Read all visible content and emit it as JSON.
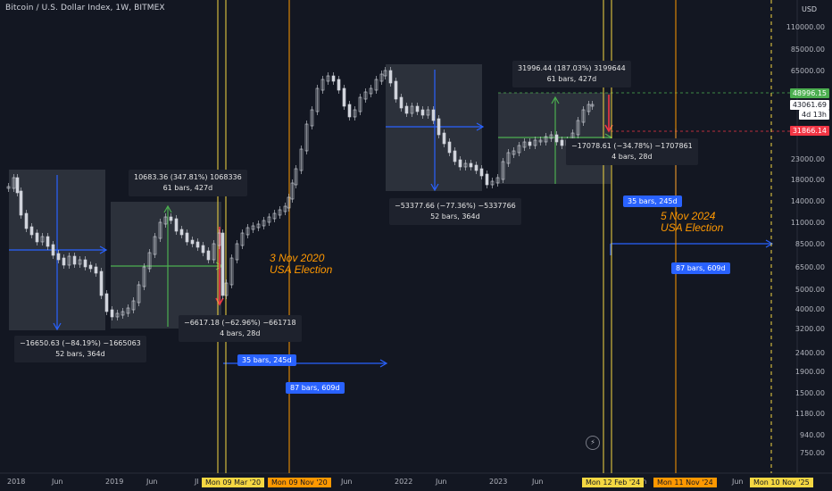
{
  "header": {
    "title": "Bitcoin / U.S. Dollar Index, 1W, BITMEX",
    "currency": "USD"
  },
  "price_axis": {
    "labels": [
      "110000.00",
      "85000.00",
      "65000.00",
      "48996.15",
      "43061.69",
      "4d 13h",
      "31866.14",
      "23000.00",
      "18000.00",
      "14000.00",
      "11000.00",
      "8500.00",
      "6500.00",
      "5000.00",
      "4000.00",
      "3200.00",
      "2400.00",
      "1900.00",
      "1500.00",
      "1180.00",
      "940.00",
      "750.00"
    ],
    "tags": {
      "high": "48996.15",
      "current": "43061.69",
      "countdown": "4d 13h",
      "low": "31866.14"
    }
  },
  "time_axis": {
    "labels": [
      "2018",
      "Jun",
      "2019",
      "Jun",
      "Jun",
      "2022",
      "Jun",
      "2023",
      "Jun",
      "Jun",
      "Jun"
    ],
    "tags": [
      "Mon 09 Mar '20",
      "Mon 09 Nov '20",
      "Mon 12 Feb '24",
      "Mon 11 Nov '24",
      "Mon 10 Nov '25"
    ],
    "partial": [
      "Jl",
      "rn",
      "4",
      "ldn"
    ]
  },
  "measurements": [
    {
      "line1": "−16650.63 (−84.19%) −1665063",
      "line2": "52 bars, 364d"
    },
    {
      "line1": "10683.36 (347.81%) 1068336",
      "line2": "61 bars, 427d"
    },
    {
      "line1": "−6617.18 (−62.96%) −661718",
      "line2": "4 bars, 28d"
    },
    {
      "line1": "−53377.66 (−77.36%) −5337766",
      "line2": "52 bars, 364d"
    },
    {
      "line1": "31996.44 (187.03%) 3199644",
      "line2": "61 bars, 427d"
    },
    {
      "line1": "−17078.61 (−34.78%) −1707861",
      "line2": "4 bars, 28d"
    }
  ],
  "bar_tags": {
    "a": "35 bars, 245d",
    "b": "87 bars, 609d",
    "c": "35 bars, 245d",
    "d": "87 bars, 609d"
  },
  "elections": {
    "e2020_line1": "3 Nov 2020",
    "e2020_line2": "USA Election",
    "e2024_line1": "5 Nov 2024",
    "e2024_line2": "USA Election"
  },
  "colors": {
    "background": "#131722",
    "accent_blue": "#2962ff",
    "election_orange": "#ff9800",
    "halving_yellow": "#f5d742",
    "up_green": "#4caf50",
    "down_red": "#f23645"
  },
  "icons": {
    "alert": "lightning-icon"
  }
}
